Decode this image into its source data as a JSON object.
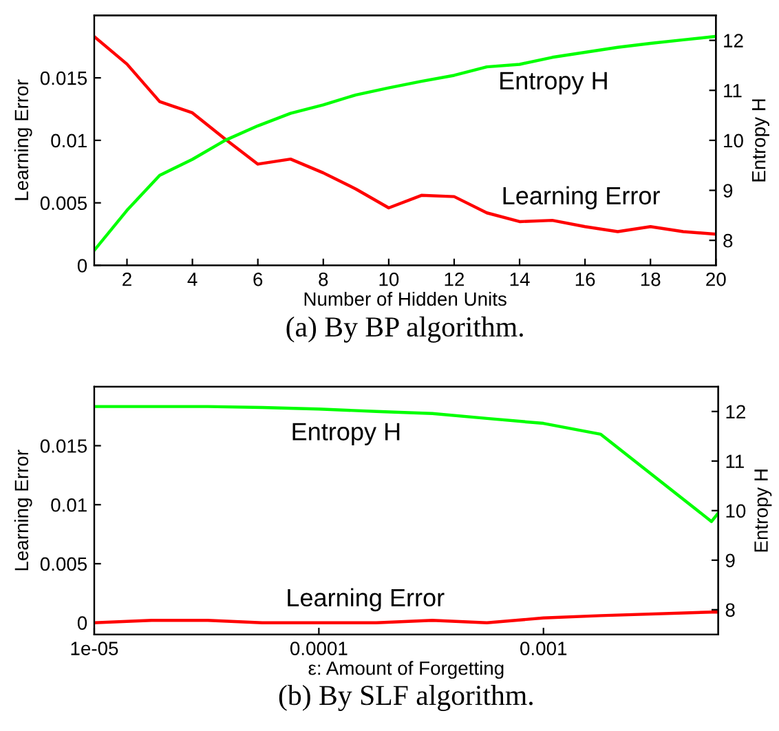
{
  "chart_data": [
    {
      "type": "line",
      "title": "(a) By BP algorithm.",
      "xlabel": "Number of Hidden Units",
      "ylabel": "Learning Error",
      "y2label": "Entropy H",
      "x": [
        1,
        2,
        3,
        4,
        5,
        6,
        7,
        8,
        9,
        10,
        11,
        12,
        13,
        14,
        15,
        16,
        17,
        18,
        19,
        20
      ],
      "series": [
        {
          "color": "#ff0000",
          "values": [
            0.0183,
            0.0161,
            0.0131,
            0.0122,
            0.0101,
            0.0081,
            0.0085,
            0.0074,
            0.0061,
            0.0046,
            0.0056,
            0.0055,
            0.0042,
            0.0035,
            0.0036,
            0.0031,
            0.0027,
            0.0031,
            0.0027,
            0.0025
          ]
        },
        {
          "color": "#00ff00",
          "axis": "y2",
          "values": [
            7.8,
            8.6,
            9.3,
            9.62,
            10.0,
            10.29,
            10.54,
            10.71,
            10.91,
            11.05,
            11.18,
            11.3,
            11.47,
            11.52,
            11.66,
            11.76,
            11.86,
            11.94,
            12.01,
            12.08
          ]
        }
      ],
      "xlim": [
        1,
        20
      ],
      "xticks": [
        2,
        4,
        6,
        8,
        10,
        12,
        14,
        16,
        18,
        20
      ],
      "ylim": [
        0,
        0.02
      ],
      "yticks": [
        0,
        0.005,
        0.01,
        0.015
      ],
      "y2lim": [
        7.5,
        12.5
      ],
      "y2ticks": [
        8,
        9,
        10,
        11,
        12
      ],
      "annotations": [
        "Entropy H",
        "Learning Error"
      ],
      "grid": false,
      "legend": false
    },
    {
      "type": "line",
      "title": "(b) By SLF algorithm.",
      "xlabel": "ε: Amount of Forgetting",
      "ylabel": "Learning Error",
      "y2label": "Entropy H",
      "log": "x",
      "x": [
        1e-05,
        1.8e-05,
        3.2e-05,
        5.6e-05,
        0.0001,
        0.00018,
        0.00032,
        0.00056,
        0.001,
        0.0018,
        0.0056,
        0.006
      ],
      "series": [
        {
          "color": "#ff0000",
          "values": [
            0,
            0.0002,
            0.0002,
            0,
            0,
            0,
            0.0002,
            0,
            0.0004,
            0.0006,
            0.0009,
            0.0009
          ]
        },
        {
          "color": "#00ff00",
          "axis": "y2",
          "values": [
            12.1,
            12.1,
            12.1,
            12.08,
            12.05,
            12.0,
            11.96,
            11.86,
            11.76,
            11.54,
            9.78,
            9.95
          ]
        }
      ],
      "xlim": [
        1e-05,
        0.006
      ],
      "xticks": [
        {
          "value": 1e-05,
          "label": "1e-05"
        },
        {
          "value": 0.0001,
          "label": "0.0001"
        },
        {
          "value": 0.001,
          "label": "0.001"
        }
      ],
      "ylim": [
        -0.001,
        0.02
      ],
      "yticks": [
        0,
        0.005,
        0.01,
        0.015
      ],
      "y2lim": [
        7.5,
        12.5
      ],
      "y2ticks": [
        8,
        9,
        10,
        11,
        12
      ],
      "annotations": [
        "Entropy H",
        "Learning Error"
      ],
      "grid": false,
      "legend": false
    }
  ]
}
